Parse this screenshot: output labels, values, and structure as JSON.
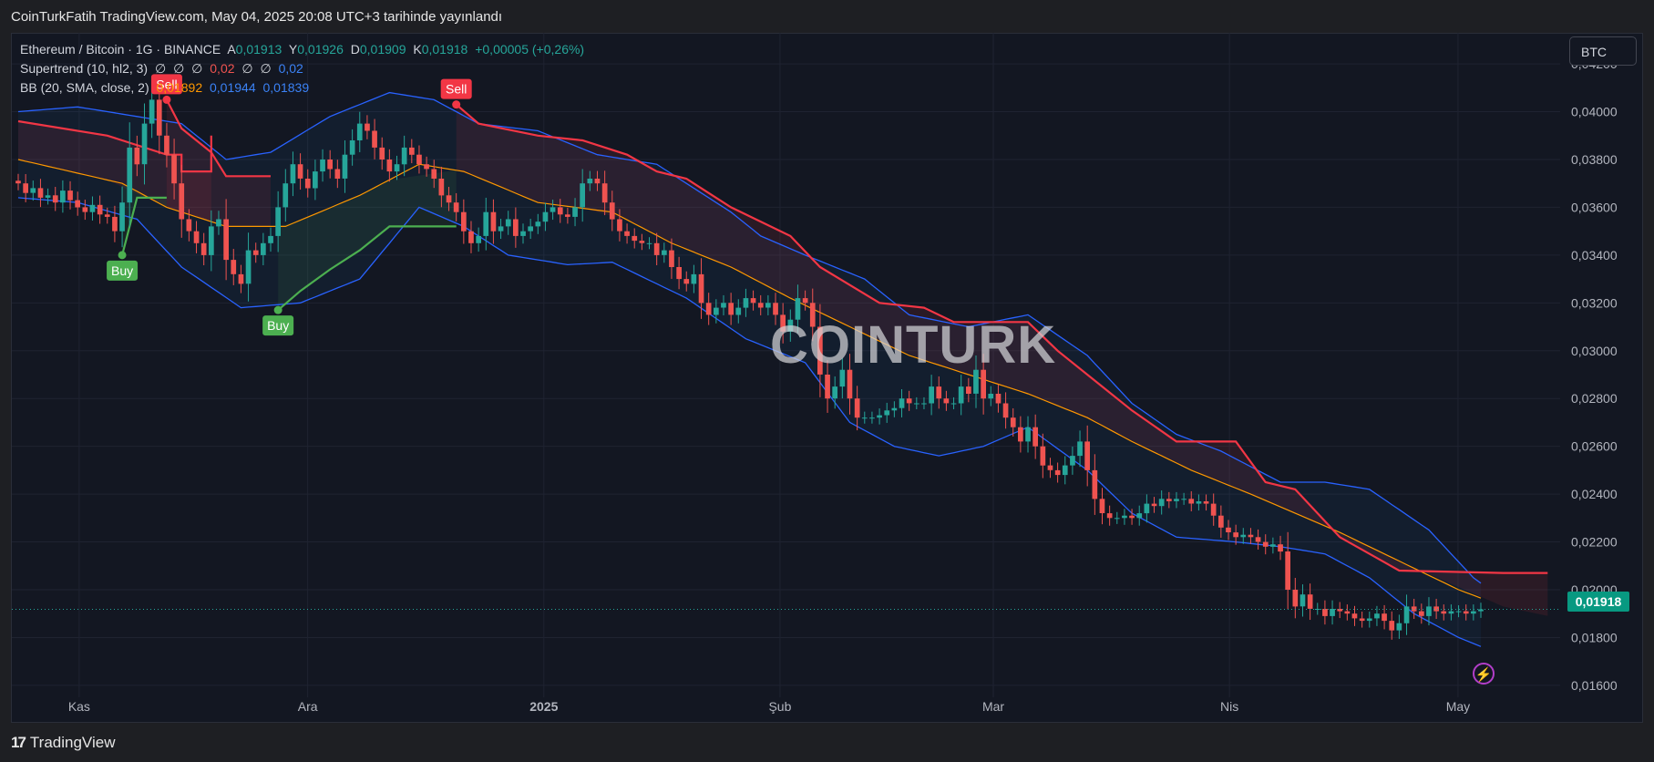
{
  "header": {
    "publish_line": "CoinTurkFatih TradingView.com, May 04, 2025 20:08 UTC+3 tarihinde yayınlandı"
  },
  "legend": {
    "symbol": "Ethereum / Bitcoin · 1G · BINANCE",
    "ohlc": {
      "a_label": "A",
      "a": "0,01913",
      "y_label": "Y",
      "y": "0,01926",
      "d_label": "D",
      "d": "0,01909",
      "k_label": "K",
      "k": "0,01918",
      "change": "+0,00005 (+0,26%)"
    },
    "supertrend": {
      "label": "Supertrend (10, hl2, 3)",
      "v1": "∅",
      "v2": "∅",
      "v3": "∅",
      "v4": "0,02",
      "v5": "∅",
      "v6": "∅",
      "v7": "0,02"
    },
    "bb": {
      "label": "BB (20, SMA, close, 2)",
      "basis": "0,01892",
      "upper": "0,01944",
      "lower": "0,01839"
    }
  },
  "currency_button": "BTC",
  "last_price_tag": "0,01918",
  "watermark": "COINTURK",
  "footer_brand": "TradingView",
  "icons": {
    "flash": "lightning-icon",
    "logo": "tradingview-logo-icon"
  },
  "colors": {
    "bull": "#26a69a",
    "bear": "#ef5350",
    "supertrend_up": "#4caf50",
    "supertrend_down": "#f23645",
    "bb_basis": "#ff9800",
    "bb_band": "#2962ff",
    "bg": "#131722"
  },
  "chart_data": {
    "type": "candlestick",
    "ylim": [
      0.0155,
      0.0433
    ],
    "y_ticks": [
      0.042,
      0.04,
      0.038,
      0.036,
      0.034,
      0.032,
      0.03,
      0.028,
      0.026,
      0.024,
      0.022,
      0.02,
      0.018,
      0.016
    ],
    "y_tick_labels": [
      "0,04200",
      "0,04000",
      "0,03800",
      "0,03600",
      "0,03400",
      "0,03200",
      "0,03000",
      "0,02800",
      "0,02600",
      "0,02400",
      "0,02200",
      "0,02000",
      "0,01800",
      "0,01600"
    ],
    "x_ticks": [
      {
        "label": "Kas",
        "date": "2024-11-01",
        "bold": false
      },
      {
        "label": "Ara",
        "date": "2024-12-01",
        "bold": false
      },
      {
        "label": "2025",
        "date": "2025-01-01",
        "bold": true
      },
      {
        "label": "Şub",
        "date": "2025-02-01",
        "bold": false
      },
      {
        "label": "Mar",
        "date": "2025-03-01",
        "bold": false
      },
      {
        "label": "Nis",
        "date": "2025-04-01",
        "bold": false
      },
      {
        "label": "May",
        "date": "2025-05-01",
        "bold": false
      }
    ],
    "x_start": "2024-10-24",
    "x_end": "2025-05-04",
    "last_close": 0.01918,
    "series": [
      {
        "name": "Ethereum / Bitcoin",
        "role": "close",
        "values": [
          0.037,
          0.0366,
          0.0368,
          0.0364,
          0.0365,
          0.0362,
          0.0367,
          0.0363,
          0.036,
          0.0358,
          0.0361,
          0.0357,
          0.0356,
          0.035,
          0.0362,
          0.0385,
          0.0378,
          0.0395,
          0.0405,
          0.039,
          0.0382,
          0.037,
          0.0355,
          0.035,
          0.0345,
          0.034,
          0.0352,
          0.0355,
          0.0338,
          0.0332,
          0.0328,
          0.0342,
          0.034,
          0.0345,
          0.0348,
          0.036,
          0.037,
          0.0378,
          0.0372,
          0.0368,
          0.0375,
          0.038,
          0.0376,
          0.0372,
          0.0382,
          0.0388,
          0.0395,
          0.0392,
          0.0385,
          0.038,
          0.0375,
          0.0378,
          0.0385,
          0.0382,
          0.0378,
          0.0376,
          0.0372,
          0.0365,
          0.0362,
          0.0358,
          0.035,
          0.0345,
          0.0348,
          0.0358,
          0.035,
          0.0352,
          0.0355,
          0.0348,
          0.035,
          0.0352,
          0.0354,
          0.0358,
          0.036,
          0.0357,
          0.0356,
          0.036,
          0.037,
          0.0372,
          0.037,
          0.0362,
          0.0355,
          0.035,
          0.0348,
          0.0346,
          0.0345,
          0.0345,
          0.034,
          0.0342,
          0.0335,
          0.033,
          0.0328,
          0.0332,
          0.032,
          0.0315,
          0.0318,
          0.032,
          0.0315,
          0.0318,
          0.0322,
          0.032,
          0.0318,
          0.032,
          0.0315,
          0.0308,
          0.0313,
          0.0322,
          0.032,
          0.031,
          0.029,
          0.028,
          0.0285,
          0.0292,
          0.028,
          0.0272,
          0.0272,
          0.0272,
          0.0273,
          0.0275,
          0.0276,
          0.028,
          0.0278,
          0.0278,
          0.0278,
          0.0285,
          0.028,
          0.0278,
          0.0278,
          0.0285,
          0.0282,
          0.0292,
          0.028,
          0.0282,
          0.0278,
          0.0272,
          0.0268,
          0.0262,
          0.0268,
          0.026,
          0.0252,
          0.025,
          0.0248,
          0.0252,
          0.0256,
          0.0262,
          0.025,
          0.0238,
          0.0232,
          0.023,
          0.023,
          0.0231,
          0.023,
          0.0232,
          0.0236,
          0.0235,
          0.0238,
          0.0237,
          0.0238,
          0.0238,
          0.0236,
          0.0237,
          0.0236,
          0.0231,
          0.0226,
          0.0224,
          0.0222,
          0.0223,
          0.0222,
          0.022,
          0.0218,
          0.0219,
          0.0216,
          0.02,
          0.0193,
          0.0198,
          0.0192,
          0.0192,
          0.0189,
          0.0192,
          0.0191,
          0.019,
          0.0188,
          0.0187,
          0.0188,
          0.019,
          0.0187,
          0.0183,
          0.0186,
          0.0193,
          0.0191,
          0.0189,
          0.0193,
          0.0191,
          0.019,
          0.0191,
          0.0191,
          0.019,
          0.0191,
          0.01918
        ]
      },
      {
        "name": "BB Basis",
        "values": [
          [
            0,
            0.038
          ],
          [
            14,
            0.037
          ],
          [
            20,
            0.036
          ],
          [
            28,
            0.0352
          ],
          [
            36,
            0.0352
          ],
          [
            46,
            0.0365
          ],
          [
            54,
            0.0378
          ],
          [
            60,
            0.0375
          ],
          [
            70,
            0.0362
          ],
          [
            80,
            0.0358
          ],
          [
            88,
            0.0345
          ],
          [
            96,
            0.0335
          ],
          [
            104,
            0.0322
          ],
          [
            112,
            0.031
          ],
          [
            120,
            0.0298
          ],
          [
            128,
            0.029
          ],
          [
            136,
            0.0282
          ],
          [
            144,
            0.0272
          ],
          [
            150,
            0.0262
          ],
          [
            158,
            0.025
          ],
          [
            166,
            0.024
          ],
          [
            172,
            0.0232
          ],
          [
            178,
            0.0224
          ],
          [
            186,
            0.0212
          ],
          [
            194,
            0.02
          ],
          [
            200,
            0.0193
          ],
          [
            206,
            0.0189
          ],
          [
            206,
            0.0189
          ]
        ]
      },
      {
        "name": "BB Upper",
        "values": [
          [
            0,
            0.04
          ],
          [
            8,
            0.0402
          ],
          [
            16,
            0.0398
          ],
          [
            22,
            0.0395
          ],
          [
            28,
            0.038
          ],
          [
            34,
            0.0383
          ],
          [
            42,
            0.0398
          ],
          [
            50,
            0.0408
          ],
          [
            56,
            0.0405
          ],
          [
            62,
            0.0395
          ],
          [
            70,
            0.0392
          ],
          [
            78,
            0.0382
          ],
          [
            86,
            0.0378
          ],
          [
            90,
            0.037
          ],
          [
            96,
            0.0358
          ],
          [
            100,
            0.0348
          ],
          [
            106,
            0.034
          ],
          [
            114,
            0.033
          ],
          [
            120,
            0.0315
          ],
          [
            128,
            0.031
          ],
          [
            136,
            0.0315
          ],
          [
            144,
            0.0298
          ],
          [
            150,
            0.0278
          ],
          [
            156,
            0.0265
          ],
          [
            162,
            0.0258
          ],
          [
            170,
            0.0245
          ],
          [
            176,
            0.0245
          ],
          [
            182,
            0.0242
          ],
          [
            190,
            0.0225
          ],
          [
            196,
            0.0205
          ],
          [
            200,
            0.0196
          ],
          [
            206,
            0.0194
          ]
        ]
      },
      {
        "name": "BB Lower",
        "values": [
          [
            0,
            0.0364
          ],
          [
            8,
            0.0362
          ],
          [
            16,
            0.0355
          ],
          [
            22,
            0.0335
          ],
          [
            30,
            0.0318
          ],
          [
            38,
            0.032
          ],
          [
            46,
            0.033
          ],
          [
            54,
            0.036
          ],
          [
            60,
            0.0352
          ],
          [
            66,
            0.034
          ],
          [
            74,
            0.0336
          ],
          [
            80,
            0.0337
          ],
          [
            90,
            0.0322
          ],
          [
            98,
            0.0305
          ],
          [
            106,
            0.0295
          ],
          [
            112,
            0.027
          ],
          [
            118,
            0.026
          ],
          [
            124,
            0.0256
          ],
          [
            130,
            0.026
          ],
          [
            136,
            0.0268
          ],
          [
            144,
            0.025
          ],
          [
            150,
            0.0232
          ],
          [
            156,
            0.0222
          ],
          [
            164,
            0.022
          ],
          [
            170,
            0.0218
          ],
          [
            176,
            0.0215
          ],
          [
            182,
            0.0205
          ],
          [
            188,
            0.019
          ],
          [
            194,
            0.018
          ],
          [
            198,
            0.0175
          ],
          [
            202,
            0.0182
          ],
          [
            206,
            0.0184
          ]
        ]
      },
      {
        "name": "Supertrend Down",
        "segments": [
          [
            [
              0,
              0.0396
            ],
            [
              12,
              0.039
            ],
            [
              20,
              0.0382
            ],
            [
              22,
              0.0382
            ],
            [
              22,
              0.0375
            ],
            [
              26,
              0.0375
            ],
            [
              26,
              0.039
            ]
          ],
          [
            [
              20,
              0.0405
            ],
            [
              22,
              0.0393
            ],
            [
              26,
              0.0383
            ],
            [
              28,
              0.0373
            ],
            [
              34,
              0.0373
            ]
          ],
          [
            [
              59,
              0.0403
            ],
            [
              62,
              0.0395
            ],
            [
              70,
              0.039
            ],
            [
              76,
              0.0388
            ],
            [
              82,
              0.0382
            ],
            [
              86,
              0.0375
            ],
            [
              90,
              0.0372
            ],
            [
              96,
              0.036
            ],
            [
              104,
              0.0348
            ],
            [
              108,
              0.0335
            ],
            [
              116,
              0.032
            ],
            [
              122,
              0.0318
            ],
            [
              126,
              0.0312
            ],
            [
              136,
              0.0312
            ],
            [
              140,
              0.03
            ],
            [
              146,
              0.0285
            ],
            [
              150,
              0.0275
            ],
            [
              156,
              0.0262
            ],
            [
              164,
              0.0262
            ],
            [
              168,
              0.0245
            ],
            [
              172,
              0.0242
            ],
            [
              178,
              0.0222
            ],
            [
              186,
              0.0208
            ],
            [
              200,
              0.0207
            ],
            [
              206,
              0.0207
            ]
          ]
        ]
      },
      {
        "name": "Supertrend Up",
        "segments": [
          [
            [
              14,
              0.034
            ],
            [
              16,
              0.0364
            ],
            [
              20,
              0.0364
            ]
          ],
          [
            [
              35,
              0.0317
            ],
            [
              38,
              0.0325
            ],
            [
              42,
              0.0334
            ],
            [
              46,
              0.0342
            ],
            [
              50,
              0.0352
            ],
            [
              59,
              0.0352
            ]
          ]
        ]
      }
    ],
    "signals": [
      {
        "label": "Sell",
        "index": 20,
        "value": 0.0405,
        "kind": "sell"
      },
      {
        "label": "Buy",
        "index": 14,
        "value": 0.034,
        "kind": "buy"
      },
      {
        "label": "Buy",
        "index": 35,
        "value": 0.0317,
        "kind": "buy"
      },
      {
        "label": "Sell",
        "index": 59,
        "value": 0.0403,
        "kind": "sell"
      }
    ]
  }
}
